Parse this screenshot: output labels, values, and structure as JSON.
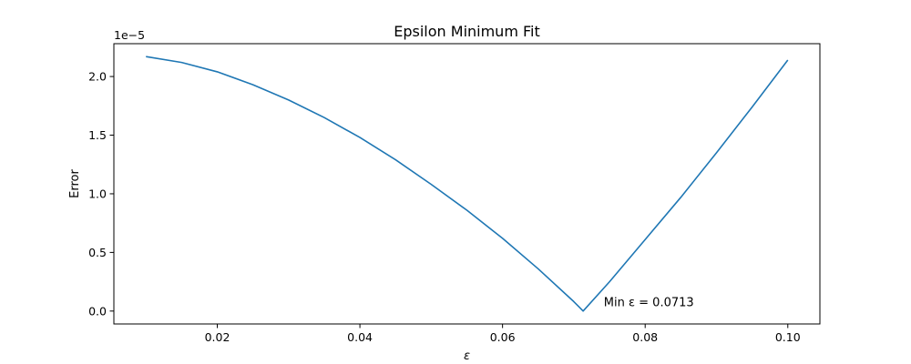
{
  "chart_data": {
    "type": "line",
    "title": "Epsilon Minimum Fit",
    "xlabel": "ε",
    "ylabel": "Error",
    "y_scale_text": "1e−5",
    "y_scale_factor": 1e-05,
    "xlim": [
      0.0055,
      0.1045
    ],
    "ylim": [
      -1.1e-06,
      2.28e-05
    ],
    "x_ticks": [
      0.02,
      0.04,
      0.06,
      0.08,
      0.1
    ],
    "x_tick_labels": [
      "0.02",
      "0.04",
      "0.06",
      "0.08",
      "0.10"
    ],
    "y_ticks": [
      0.0,
      5e-06,
      1e-05,
      1.5e-05,
      2e-05
    ],
    "y_tick_labels": [
      "0.0",
      "0.5",
      "1.0",
      "1.5",
      "2.0"
    ],
    "grid": false,
    "series": [
      {
        "color": "#1f77b4",
        "x": [
          0.01,
          0.015,
          0.02,
          0.025,
          0.03,
          0.035,
          0.04,
          0.045,
          0.05,
          0.055,
          0.06,
          0.065,
          0.07,
          0.0713,
          0.075,
          0.08,
          0.085,
          0.09,
          0.095,
          0.1
        ],
        "y": [
          2.17e-05,
          2.12e-05,
          2.04e-05,
          1.93e-05,
          1.8e-05,
          1.65e-05,
          1.48e-05,
          1.29e-05,
          1.08e-05,
          8.6e-06,
          6.2e-06,
          3.6e-06,
          8e-07,
          0.0,
          2.5e-06,
          6.1e-06,
          9.7e-06,
          1.35e-05,
          1.74e-05,
          2.14e-05
        ]
      }
    ],
    "annotations": [
      {
        "text": "Min ε = 0.0713",
        "x": 0.0742,
        "y": 4e-07
      }
    ]
  }
}
